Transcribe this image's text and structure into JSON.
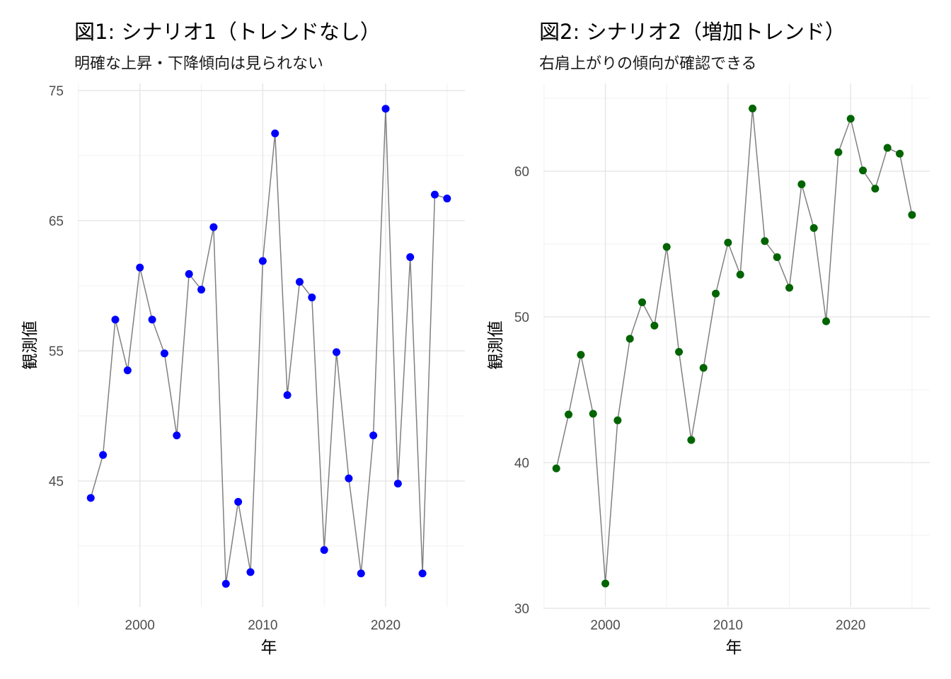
{
  "chart_data": [
    {
      "type": "line",
      "title": "図1: シナリオ1（トレンドなし）",
      "subtitle": "明確な上昇・下降傾向は見られない",
      "xlabel": "年",
      "ylabel": "観測値",
      "point_color": "#0000FF",
      "line_color": "#808080",
      "xlim": [
        1994.95,
        2026.45
      ],
      "ylim": [
        35.33,
        75.54
      ],
      "xticks": [
        2000,
        2010,
        2020
      ],
      "xminor": [
        1995,
        2005,
        2015,
        2025
      ],
      "yticks": [
        45,
        55,
        65,
        75
      ],
      "yminor": [
        40,
        50,
        60,
        70
      ],
      "grid": true,
      "x": [
        1996,
        1997,
        1998,
        1999,
        2000,
        2001,
        2002,
        2003,
        2004,
        2005,
        2006,
        2007,
        2008,
        2009,
        2010,
        2011,
        2012,
        2013,
        2014,
        2015,
        2016,
        2017,
        2018,
        2019,
        2020,
        2021,
        2022,
        2023,
        2024,
        2025
      ],
      "y": [
        43.7,
        47.0,
        57.4,
        53.5,
        61.4,
        57.4,
        54.8,
        48.5,
        60.9,
        59.7,
        64.5,
        37.1,
        43.4,
        38.0,
        61.9,
        71.7,
        51.6,
        60.3,
        59.1,
        39.7,
        54.9,
        45.2,
        37.9,
        48.5,
        73.6,
        44.8,
        62.2,
        37.9,
        67.0,
        66.7
      ]
    },
    {
      "type": "line",
      "title": "図2: シナリオ2（増加トレンド）",
      "subtitle": "右肩上がりの傾向が確認できる",
      "xlabel": "年",
      "ylabel": "観測値",
      "point_color": "#006400",
      "line_color": "#808080",
      "xlim": [
        1994.95,
        2026.45
      ],
      "ylim": [
        30.1,
        66.02
      ],
      "xticks": [
        2000,
        2010,
        2020
      ],
      "xminor": [
        1995,
        2005,
        2015,
        2025
      ],
      "yticks": [
        30,
        40,
        50,
        60
      ],
      "yminor": [
        35,
        45,
        55,
        65
      ],
      "grid": true,
      "x": [
        1996,
        1997,
        1998,
        1999,
        2000,
        2001,
        2002,
        2003,
        2004,
        2005,
        2006,
        2007,
        2008,
        2009,
        2010,
        2011,
        2012,
        2013,
        2014,
        2015,
        2016,
        2017,
        2018,
        2019,
        2020,
        2021,
        2022,
        2023,
        2024,
        2025
      ],
      "y": [
        39.6,
        43.3,
        47.4,
        43.35,
        31.7,
        42.9,
        48.5,
        51.0,
        49.4,
        54.8,
        47.6,
        41.55,
        46.5,
        51.6,
        55.1,
        52.9,
        64.3,
        55.2,
        54.1,
        52.0,
        59.1,
        56.1,
        49.7,
        61.3,
        63.6,
        60.05,
        58.8,
        61.6,
        61.2,
        57.0
      ]
    }
  ]
}
